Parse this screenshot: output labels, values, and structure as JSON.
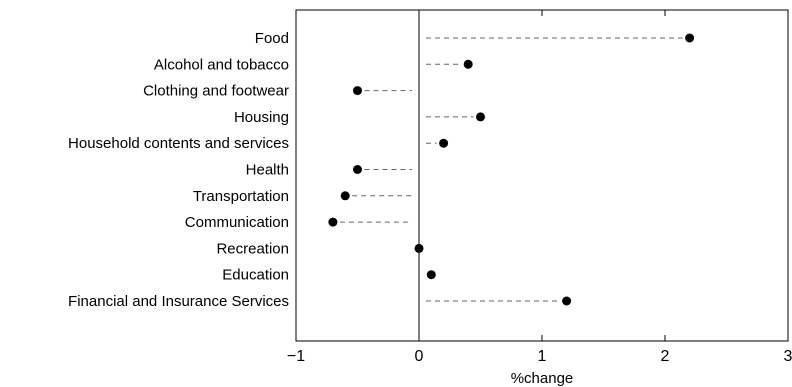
{
  "chart_data": {
    "type": "dot",
    "orientation": "horizontal",
    "categories": [
      "Food",
      "Alcohol and tobacco",
      "Clothing and footwear",
      "Housing",
      "Household contents and services",
      "Health",
      "Transportation",
      "Communication",
      "Recreation",
      "Education",
      "Financial and Insurance Services"
    ],
    "values": [
      2.2,
      0.4,
      -0.5,
      0.5,
      0.2,
      -0.5,
      -0.6,
      -0.7,
      0.0,
      0.1,
      1.2
    ],
    "xlabel": "%change",
    "xlim": [
      -1,
      3
    ],
    "xticks": [
      -1,
      0,
      1,
      2,
      3
    ],
    "xtick_labels": [
      "−1",
      "0",
      "1",
      "2",
      "3"
    ],
    "title": "",
    "ylabel": "",
    "grid": false,
    "zero_line": true,
    "leader_lines": "dashed",
    "marker": "filled-circle",
    "colors": {
      "marker": "#000000",
      "leader": "#666666",
      "axis": "#000000"
    }
  }
}
